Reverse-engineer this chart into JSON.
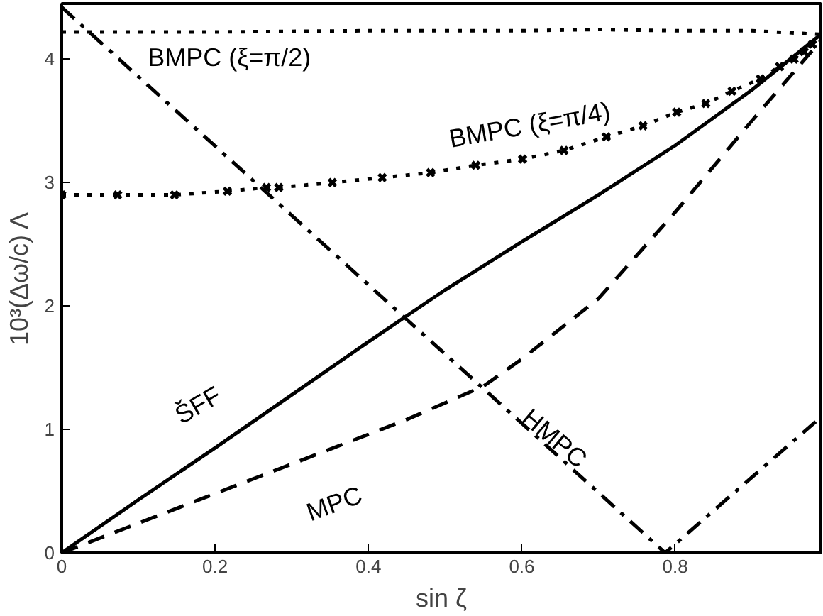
{
  "chart_data": {
    "type": "line",
    "xlabel": "sin ζ",
    "ylabel": "10³(Δω/c) Λ",
    "xlim": [
      0,
      0.99
    ],
    "ylim": [
      0,
      4.45
    ],
    "xticks": [
      0,
      0.2,
      0.4,
      0.6,
      0.8
    ],
    "yticks": [
      0,
      1,
      2,
      3,
      4
    ],
    "grid": false,
    "series": [
      {
        "name": "BMPC (ξ=π/2)",
        "color": "#000000",
        "line_style": "dotted",
        "marker": "none",
        "x": [
          0,
          0.2,
          0.4,
          0.5,
          0.6,
          0.7,
          0.8,
          0.9,
          0.99
        ],
        "values": [
          4.22,
          4.22,
          4.23,
          4.23,
          4.23,
          4.24,
          4.23,
          4.23,
          4.2
        ]
      },
      {
        "name": "BMPC (ξ=π/4)",
        "color": "#000000",
        "line_style": "dotted",
        "marker": "cross",
        "x": [
          0,
          0.073,
          0.147,
          0.216,
          0.267,
          0.283,
          0.353,
          0.418,
          0.481,
          0.54,
          0.601,
          0.655,
          0.71,
          0.758,
          0.802,
          0.84,
          0.874,
          0.911,
          0.936,
          0.955,
          0.968,
          0.979
        ],
        "values": [
          2.9,
          2.9,
          2.9,
          2.93,
          2.96,
          2.96,
          3.0,
          3.04,
          3.08,
          3.14,
          3.19,
          3.26,
          3.37,
          3.46,
          3.57,
          3.64,
          3.74,
          3.84,
          3.94,
          4.0,
          4.06,
          4.12
        ]
      },
      {
        "name": "ŠFF",
        "color": "#000000",
        "line_style": "solid",
        "marker": "none",
        "x": [
          0,
          0.1,
          0.2,
          0.3,
          0.4,
          0.45,
          0.5,
          0.6,
          0.7,
          0.8,
          0.9,
          0.99
        ],
        "values": [
          0,
          0.43,
          0.85,
          1.28,
          1.71,
          1.92,
          2.13,
          2.52,
          2.9,
          3.3,
          3.75,
          4.2
        ]
      },
      {
        "name": "MPC",
        "color": "#000000",
        "line_style": "dashed",
        "marker": "none",
        "x": [
          0,
          0.1,
          0.2,
          0.3,
          0.45,
          0.55,
          0.6,
          0.7,
          0.8,
          0.9,
          0.99
        ],
        "values": [
          0,
          0.24,
          0.48,
          0.72,
          1.08,
          1.35,
          1.57,
          2.06,
          2.76,
          3.5,
          4.15
        ]
      },
      {
        "name": "HMPC",
        "color": "#000000",
        "line_style": "dashdot",
        "marker": "none",
        "x": [
          0,
          0.45,
          0.55,
          0.787,
          0.99
        ],
        "values": [
          4.42,
          1.89,
          1.33,
          0,
          1.1
        ]
      }
    ]
  }
}
